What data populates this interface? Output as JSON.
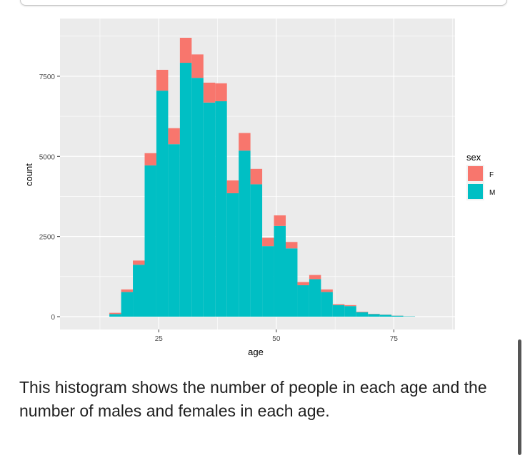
{
  "chart_data": {
    "type": "bar",
    "stacked": true,
    "x_bin_start": [
      14.5,
      17,
      19.5,
      22,
      24.5,
      27,
      29.5,
      32,
      34.5,
      37,
      39.5,
      42,
      44.5,
      47,
      49.5,
      52,
      54.5,
      57,
      59.5,
      62,
      64.5,
      67,
      69.5,
      72,
      74.5,
      77
    ],
    "bin_width": 2.5,
    "series": [
      {
        "name": "F",
        "color": "#F8766D",
        "values": [
          40,
          80,
          130,
          380,
          650,
          500,
          780,
          730,
          620,
          560,
          400,
          550,
          480,
          260,
          330,
          200,
          100,
          130,
          80,
          30,
          30,
          15,
          8,
          5,
          3,
          1
        ]
      },
      {
        "name": "M",
        "color": "#00BFC4",
        "values": [
          80,
          770,
          1620,
          4720,
          7050,
          5380,
          7920,
          7450,
          6680,
          6720,
          3850,
          5180,
          4130,
          2200,
          2830,
          2130,
          980,
          1170,
          770,
          360,
          330,
          140,
          80,
          60,
          30,
          10
        ]
      }
    ],
    "xlabel": "age",
    "ylabel": "count",
    "xlim": [
      4,
      88
    ],
    "ylim": [
      -400,
      9300
    ],
    "x_ticks": [
      25,
      50,
      75
    ],
    "y_ticks": [
      0,
      2500,
      5000,
      7500
    ],
    "x_tick_labels": [
      "25",
      "50",
      "75"
    ],
    "y_tick_labels": [
      "0",
      "2500",
      "5000",
      "7500"
    ],
    "grid": true,
    "legend": {
      "title": "sex",
      "placement": "right",
      "entries": [
        "F",
        "M"
      ]
    },
    "panel_color": "#EBEBEB",
    "grid_color": "#FFFFFF"
  },
  "caption": "This histogram shows the number of people in each age and the number of males and females in each age."
}
